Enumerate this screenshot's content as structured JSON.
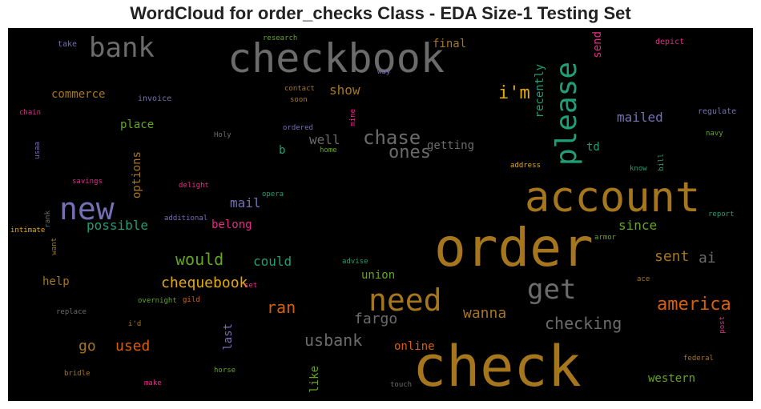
{
  "title": "WordCloud for order_checks Class - EDA Size-1 Testing Set",
  "words": [
    {
      "text": "checkbook",
      "color": "#6b6b6b"
    },
    {
      "text": "bank",
      "color": "#6b6b6b"
    },
    {
      "text": "please",
      "color": "#1f9e77"
    },
    {
      "text": "account",
      "color": "#a6761d"
    },
    {
      "text": "order",
      "color": "#a6761d"
    },
    {
      "text": "check",
      "color": "#a6761d"
    },
    {
      "text": "new",
      "color": "#7570b3"
    },
    {
      "text": "need",
      "color": "#a6761d"
    },
    {
      "text": "get",
      "color": "#6b6b6b"
    },
    {
      "text": "chase",
      "color": "#6b6b6b"
    },
    {
      "text": "ones",
      "color": "#6b6b6b"
    },
    {
      "text": "i'm",
      "color": "#e6ab02"
    },
    {
      "text": "america",
      "color": "#d95f02"
    },
    {
      "text": "checking",
      "color": "#6b6b6b"
    },
    {
      "text": "usbank",
      "color": "#6b6b6b"
    },
    {
      "text": "would",
      "color": "#66a61e"
    },
    {
      "text": "chequebook",
      "color": "#e6ab02"
    },
    {
      "text": "ran",
      "color": "#d95f02"
    },
    {
      "text": "wanna",
      "color": "#a6761d"
    },
    {
      "text": "fargo",
      "color": "#6b6b6b"
    },
    {
      "text": "sent",
      "color": "#a6761d"
    },
    {
      "text": "ai",
      "color": "#6b6b6b"
    },
    {
      "text": "since",
      "color": "#66a61e"
    },
    {
      "text": "mailed",
      "color": "#7570b3"
    },
    {
      "text": "used",
      "color": "#d95f02"
    },
    {
      "text": "go",
      "color": "#a6761d"
    },
    {
      "text": "mail",
      "color": "#7570b3"
    },
    {
      "text": "possible",
      "color": "#1f9e77"
    },
    {
      "text": "could",
      "color": "#1f9e77"
    },
    {
      "text": "well",
      "color": "#6b6b6b"
    },
    {
      "text": "show",
      "color": "#a6761d"
    },
    {
      "text": "commerce",
      "color": "#a6761d"
    },
    {
      "text": "place",
      "color": "#66a61e"
    },
    {
      "text": "belong",
      "color": "#e7298a"
    },
    {
      "text": "getting",
      "color": "#6b6b6b"
    },
    {
      "text": "final",
      "color": "#a6761d"
    },
    {
      "text": "td",
      "color": "#1f9e77"
    },
    {
      "text": "western",
      "color": "#66a61e"
    },
    {
      "text": "online",
      "color": "#d95f02"
    },
    {
      "text": "union",
      "color": "#66a61e"
    },
    {
      "text": "help",
      "color": "#a6761d"
    },
    {
      "text": "options",
      "color": "#a6761d"
    },
    {
      "text": "recently",
      "color": "#1f9e77"
    },
    {
      "text": "last",
      "color": "#7570b3"
    },
    {
      "text": "like",
      "color": "#66a61e"
    },
    {
      "text": "send",
      "color": "#e7298a"
    },
    {
      "text": "b",
      "color": "#1f9e77"
    },
    {
      "text": "take",
      "color": "#7570b3"
    },
    {
      "text": "research",
      "color": "#66a61e"
    },
    {
      "text": "depict",
      "color": "#e7298a"
    },
    {
      "text": "way",
      "color": "#7570b3"
    },
    {
      "text": "contact",
      "color": "#a6761d"
    },
    {
      "text": "soon",
      "color": "#a6761d"
    },
    {
      "text": "invoice",
      "color": "#7570b3"
    },
    {
      "text": "chain",
      "color": "#e7298a"
    },
    {
      "text": "mine",
      "color": "#e7298a"
    },
    {
      "text": "regulate",
      "color": "#7570b3"
    },
    {
      "text": "navy",
      "color": "#66a61e"
    },
    {
      "text": "ordered",
      "color": "#7570b3"
    },
    {
      "text": "Holy",
      "color": "#6b6b6b"
    },
    {
      "text": "usaa",
      "color": "#7570b3"
    },
    {
      "text": "home",
      "color": "#66a61e"
    },
    {
      "text": "address",
      "color": "#e6ab02"
    },
    {
      "text": "know",
      "color": "#1f9e77"
    },
    {
      "text": "bill",
      "color": "#1f9e77"
    },
    {
      "text": "savings",
      "color": "#e7298a"
    },
    {
      "text": "delight",
      "color": "#e7298a"
    },
    {
      "text": "opera",
      "color": "#1f9e77"
    },
    {
      "text": "rank",
      "color": "#6b6b6b"
    },
    {
      "text": "additional",
      "color": "#7570b3"
    },
    {
      "text": "intimate",
      "color": "#e6ab02"
    },
    {
      "text": "want",
      "color": "#a6761d"
    },
    {
      "text": "report",
      "color": "#1f9e77"
    },
    {
      "text": "armor",
      "color": "#66a61e"
    },
    {
      "text": "advise",
      "color": "#1f9e77"
    },
    {
      "text": "ace",
      "color": "#a6761d"
    },
    {
      "text": "set",
      "color": "#e7298a"
    },
    {
      "text": "replace",
      "color": "#6b6b6b"
    },
    {
      "text": "overnight",
      "color": "#66a61e"
    },
    {
      "text": "gild",
      "color": "#d95f02"
    },
    {
      "text": "i'd",
      "color": "#a6761d"
    },
    {
      "text": "post",
      "color": "#e7298a"
    },
    {
      "text": "federal",
      "color": "#a6761d"
    },
    {
      "text": "bridle",
      "color": "#a6761d"
    },
    {
      "text": "horse",
      "color": "#66a61e"
    },
    {
      "text": "make",
      "color": "#e7298a"
    },
    {
      "text": "touch",
      "color": "#6b6b6b"
    }
  ]
}
